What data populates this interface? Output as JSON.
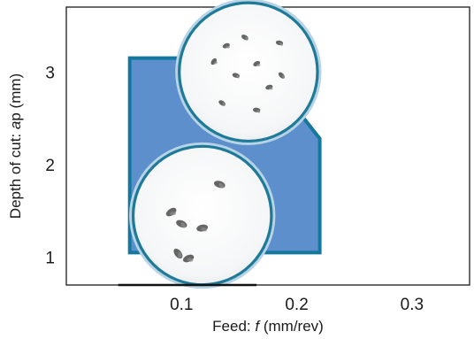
{
  "chart_data": {
    "type": "area",
    "title": "",
    "xlabel": {
      "prefix": "Feed: ",
      "symbol": "f",
      "suffix": " (mm/rev)"
    },
    "ylabel": {
      "prefix": "Depth of cut: ",
      "symbol": "a",
      "suffix": "p (mm)"
    },
    "xlim": [
      0.0,
      0.35
    ],
    "ylim": [
      0.7,
      3.7
    ],
    "x_ticks": [
      {
        "value": 0.1,
        "label": "0.1"
      },
      {
        "value": 0.2,
        "label": "0.2"
      },
      {
        "value": 0.3,
        "label": "0.3"
      }
    ],
    "y_ticks": [
      {
        "value": 1,
        "label": "1"
      },
      {
        "value": 2,
        "label": "2"
      },
      {
        "value": 3,
        "label": "3"
      }
    ],
    "grid": false,
    "recommended_region": {
      "fill_color": "#5d8fcc",
      "edge_color": "#14789e",
      "polygon": [
        {
          "x": 0.055,
          "y": 3.15
        },
        {
          "x": 0.165,
          "y": 3.15
        },
        {
          "x": 0.22,
          "y": 2.28
        },
        {
          "x": 0.22,
          "y": 1.05
        },
        {
          "x": 0.055,
          "y": 1.05
        }
      ]
    },
    "insets": [
      {
        "name": "chip-sample-upper",
        "center": {
          "x": 0.158,
          "y": 3.0
        },
        "radius_x": 0.06
      },
      {
        "name": "chip-sample-lower",
        "center": {
          "x": 0.118,
          "y": 1.45
        },
        "radius_x": 0.06
      }
    ],
    "inset_ring_color": "#1f7a98",
    "x_axis_highlight": {
      "from": 0.045,
      "to": 0.165,
      "color": "#111111"
    }
  }
}
